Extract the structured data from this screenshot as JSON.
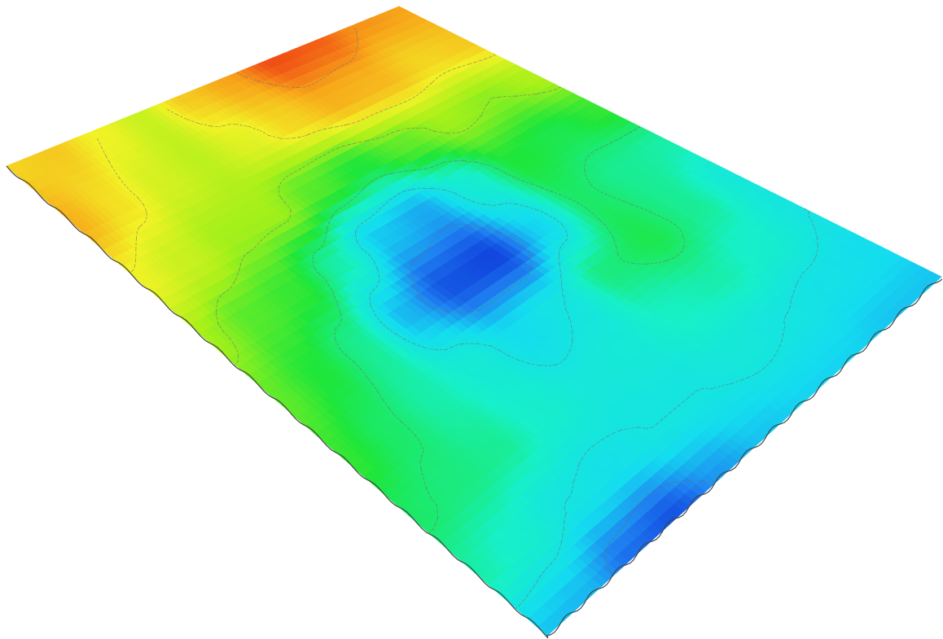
{
  "chart_data": {
    "type": "heatmap",
    "rendering": "3d-surface",
    "title": "",
    "xlabel": "",
    "ylabel": "",
    "zlabel": "",
    "axes_visible": false,
    "legend": "none",
    "colormap": [
      "#0a2bd6",
      "#1f7ff0",
      "#14dcf0",
      "#17f0c8",
      "#1ee63a",
      "#a8f01a",
      "#f2f226",
      "#f7a81a",
      "#ef3c14"
    ],
    "contour_color": "#6e6e6e",
    "z_range": [
      0,
      1
    ],
    "grid_rows": 9,
    "grid_cols": 10,
    "z_values": [
      [
        0.8,
        0.82,
        0.75,
        0.68,
        0.82,
        0.88,
        0.98,
        0.96,
        0.9,
        0.88
      ],
      [
        0.86,
        0.78,
        0.7,
        0.66,
        0.72,
        0.8,
        0.86,
        0.85,
        0.8,
        0.82
      ],
      [
        0.74,
        0.68,
        0.62,
        0.62,
        0.55,
        0.5,
        0.56,
        0.62,
        0.6,
        0.64
      ],
      [
        0.62,
        0.55,
        0.52,
        0.4,
        0.22,
        0.18,
        0.34,
        0.5,
        0.48,
        0.52
      ],
      [
        0.56,
        0.5,
        0.42,
        0.2,
        0.06,
        0.04,
        0.24,
        0.46,
        0.42,
        0.4
      ],
      [
        0.52,
        0.46,
        0.4,
        0.34,
        0.26,
        0.3,
        0.44,
        0.48,
        0.42,
        0.32
      ],
      [
        0.46,
        0.44,
        0.42,
        0.36,
        0.32,
        0.33,
        0.38,
        0.4,
        0.36,
        0.3
      ],
      [
        0.4,
        0.36,
        0.3,
        0.28,
        0.3,
        0.3,
        0.32,
        0.3,
        0.28,
        0.26
      ],
      [
        0.22,
        0.2,
        0.1,
        0.06,
        0.16,
        0.22,
        0.24,
        0.24,
        0.22,
        0.22
      ]
    ]
  }
}
